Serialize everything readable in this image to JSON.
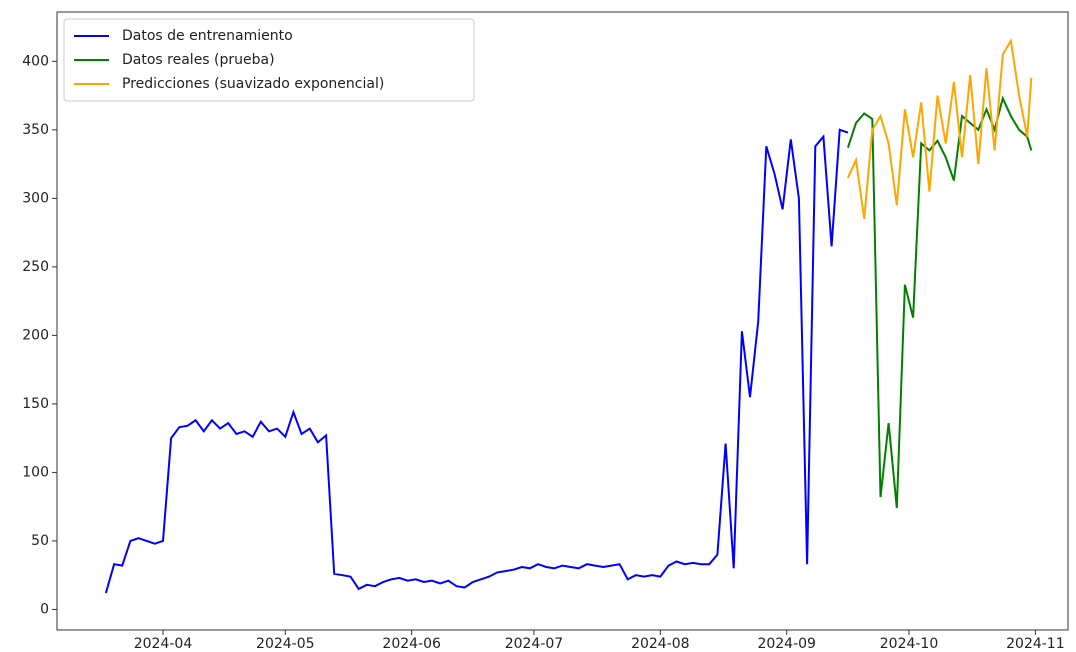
{
  "chart_data": {
    "type": "line",
    "series": [
      {
        "name": "Datos de entrenamiento",
        "color": "#0000ff",
        "x": [
          "2024-03-18",
          "2024-03-20",
          "2024-03-22",
          "2024-03-24",
          "2024-03-26",
          "2024-03-28",
          "2024-03-30",
          "2024-04-01",
          "2024-04-03",
          "2024-04-05",
          "2024-04-07",
          "2024-04-09",
          "2024-04-11",
          "2024-04-13",
          "2024-04-15",
          "2024-04-17",
          "2024-04-19",
          "2024-04-21",
          "2024-04-23",
          "2024-04-25",
          "2024-04-27",
          "2024-04-29",
          "2024-05-01",
          "2024-05-03",
          "2024-05-05",
          "2024-05-07",
          "2024-05-09",
          "2024-05-11",
          "2024-05-13",
          "2024-05-15",
          "2024-05-17",
          "2024-05-19",
          "2024-05-21",
          "2024-05-23",
          "2024-05-25",
          "2024-05-27",
          "2024-05-29",
          "2024-05-31",
          "2024-06-02",
          "2024-06-04",
          "2024-06-06",
          "2024-06-08",
          "2024-06-10",
          "2024-06-12",
          "2024-06-14",
          "2024-06-16",
          "2024-06-18",
          "2024-06-20",
          "2024-06-22",
          "2024-06-24",
          "2024-06-26",
          "2024-06-28",
          "2024-06-30",
          "2024-07-02",
          "2024-07-04",
          "2024-07-06",
          "2024-07-08",
          "2024-07-10",
          "2024-07-12",
          "2024-07-14",
          "2024-07-16",
          "2024-07-18",
          "2024-07-20",
          "2024-07-22",
          "2024-07-24",
          "2024-07-26",
          "2024-07-28",
          "2024-07-30",
          "2024-08-01",
          "2024-08-03",
          "2024-08-05",
          "2024-08-07",
          "2024-08-09",
          "2024-08-11",
          "2024-08-13",
          "2024-08-15",
          "2024-08-17",
          "2024-08-19",
          "2024-08-21",
          "2024-08-23",
          "2024-08-25",
          "2024-08-27",
          "2024-08-29",
          "2024-08-31",
          "2024-09-02",
          "2024-09-04",
          "2024-09-06",
          "2024-09-08",
          "2024-09-10",
          "2024-09-12",
          "2024-09-14",
          "2024-09-16"
        ],
        "values": [
          12,
          33,
          32,
          50,
          52,
          50,
          48,
          50,
          125,
          133,
          134,
          138,
          130,
          138,
          132,
          136,
          128,
          130,
          126,
          137,
          130,
          132,
          126,
          144,
          128,
          132,
          122,
          127,
          26,
          25,
          24,
          15,
          18,
          17,
          20,
          22,
          23,
          21,
          22,
          20,
          21,
          19,
          21,
          17,
          16,
          20,
          22,
          24,
          27,
          28,
          29,
          31,
          30,
          33,
          31,
          30,
          32,
          31,
          30,
          33,
          32,
          31,
          32,
          33,
          22,
          25,
          24,
          25,
          24,
          32,
          35,
          33,
          34,
          33,
          33,
          40,
          121,
          30,
          203,
          155,
          210,
          338,
          318,
          292,
          343,
          300,
          33,
          338,
          345,
          265,
          350,
          348
        ]
      },
      {
        "name": "Datos reales (prueba)",
        "color": "#008000",
        "x": [
          "2024-09-16",
          "2024-09-18",
          "2024-09-20",
          "2024-09-22",
          "2024-09-24",
          "2024-09-26",
          "2024-09-28",
          "2024-09-30",
          "2024-10-02",
          "2024-10-04",
          "2024-10-06",
          "2024-10-08",
          "2024-10-10",
          "2024-10-12",
          "2024-10-14",
          "2024-10-16",
          "2024-10-18",
          "2024-10-20",
          "2024-10-22",
          "2024-10-24",
          "2024-10-26",
          "2024-10-28",
          "2024-10-30",
          "2024-10-31"
        ],
        "values": [
          337,
          355,
          362,
          358,
          82,
          136,
          74,
          237,
          213,
          340,
          335,
          342,
          330,
          313,
          360,
          355,
          350,
          365,
          350,
          373,
          360,
          350,
          345,
          335
        ]
      },
      {
        "name": "Predicciones (suavizado exponencial)",
        "color": "#ffa500",
        "x": [
          "2024-09-16",
          "2024-09-18",
          "2024-09-20",
          "2024-09-22",
          "2024-09-24",
          "2024-09-26",
          "2024-09-28",
          "2024-09-30",
          "2024-10-02",
          "2024-10-04",
          "2024-10-06",
          "2024-10-08",
          "2024-10-10",
          "2024-10-12",
          "2024-10-14",
          "2024-10-16",
          "2024-10-18",
          "2024-10-20",
          "2024-10-22",
          "2024-10-24",
          "2024-10-26",
          "2024-10-28",
          "2024-10-30",
          "2024-10-31"
        ],
        "values": [
          315,
          328,
          285,
          350,
          360,
          340,
          295,
          365,
          330,
          370,
          305,
          375,
          340,
          385,
          330,
          390,
          325,
          395,
          335,
          405,
          415,
          375,
          345,
          388
        ]
      }
    ],
    "xlim": [
      "2024-03-06",
      "2024-11-09"
    ],
    "xticks": [
      {
        "value": "2024-04-01",
        "label": "2024-04"
      },
      {
        "value": "2024-05-01",
        "label": "2024-05"
      },
      {
        "value": "2024-06-01",
        "label": "2024-06"
      },
      {
        "value": "2024-07-01",
        "label": "2024-07"
      },
      {
        "value": "2024-08-01",
        "label": "2024-08"
      },
      {
        "value": "2024-09-01",
        "label": "2024-09"
      },
      {
        "value": "2024-10-01",
        "label": "2024-10"
      },
      {
        "value": "2024-11-01",
        "label": "2024-11"
      }
    ],
    "ylim": [
      -15,
      436
    ],
    "yticks": [
      0,
      50,
      100,
      150,
      200,
      250,
      300,
      350,
      400
    ],
    "legend": "upper left",
    "grid": false
  }
}
